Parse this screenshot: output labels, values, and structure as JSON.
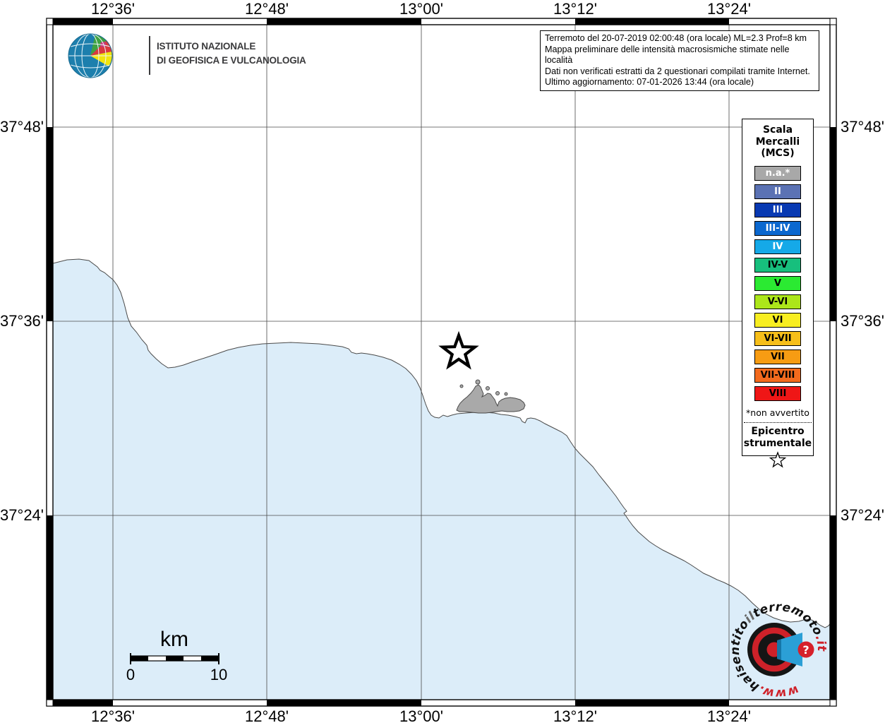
{
  "info_box": {
    "lines": [
      "Terremoto del 20-07-2019 02:00:48 (ora locale) ML=2.3 Prof=8 km",
      "Mappa preliminare delle intensità macrosismiche stimate nelle località",
      "Dati non verificati estratti da 2 questionari compilati tramite Internet.",
      "Ultimo aggiornamento: 07-01-2026 13:44 (ora locale)"
    ]
  },
  "ingv": {
    "line1": "ISTITUTO NAZIONALE",
    "line2": "DI GEOFISICA E VULCANOLOGIA"
  },
  "axes": {
    "top": [
      "12°36'",
      "12°48'",
      "13°00'",
      "13°12'",
      "13°24'"
    ],
    "bottom": [
      "12°36'",
      "12°48'",
      "13°00'",
      "13°12'",
      "13°24'"
    ],
    "left": [
      "37°48'",
      "37°36'",
      "37°24'"
    ],
    "right": [
      "37°48'",
      "37°36'",
      "37°24'"
    ]
  },
  "legend": {
    "title_lines": [
      "Scala",
      "Mercalli",
      "(MCS)"
    ],
    "entries": [
      {
        "label": "n.a.*",
        "color": "#A8A8A8",
        "text_color": "#FFFFFF"
      },
      {
        "label": "II",
        "color": "#5B72B4",
        "text_color": "#FFFFFF"
      },
      {
        "label": "III",
        "color": "#0839B2",
        "text_color": "#FFFFFF"
      },
      {
        "label": "III-IV",
        "color": "#0B68CF",
        "text_color": "#FFFFFF"
      },
      {
        "label": "IV",
        "color": "#15A9E8",
        "text_color": "#FFFFFF"
      },
      {
        "label": "IV-V",
        "color": "#17BF7D",
        "text_color": "#000000"
      },
      {
        "label": "V",
        "color": "#2BEA32",
        "text_color": "#000000"
      },
      {
        "label": "V-VI",
        "color": "#ACE61A",
        "text_color": "#000000"
      },
      {
        "label": "VI",
        "color": "#F8EE21",
        "text_color": "#000000"
      },
      {
        "label": "VI-VII",
        "color": "#F7BF1A",
        "text_color": "#000000"
      },
      {
        "label": "VII",
        "color": "#F79C13",
        "text_color": "#000000"
      },
      {
        "label": "VII-VIII",
        "color": "#F36A1D",
        "text_color": "#000000"
      },
      {
        "label": "VIII",
        "color": "#EF1616",
        "text_color": "#000000"
      }
    ],
    "footnote": "*non avvertito",
    "epicenter_line1": "Epicentro",
    "epicenter_line2": "strumentale"
  },
  "scale_bar": {
    "unit": "km",
    "start_label": "0",
    "end_label": "10"
  },
  "branding_logo": {
    "segments": [
      {
        "text": "www.",
        "color": "#CE2129"
      },
      {
        "text": "haisentito",
        "color": "#111111"
      },
      {
        "text": "il",
        "color": "#666666"
      },
      {
        "text": "terremoto",
        "color": "#111111"
      },
      {
        "text": ".it",
        "color": "#CE2129"
      }
    ],
    "question_mark": "?"
  },
  "colors": {
    "sea": "#DCEDF9",
    "land": "#FFFFFF",
    "urban_area": "#A9A9A9",
    "coastline": "#4a4a4a"
  }
}
